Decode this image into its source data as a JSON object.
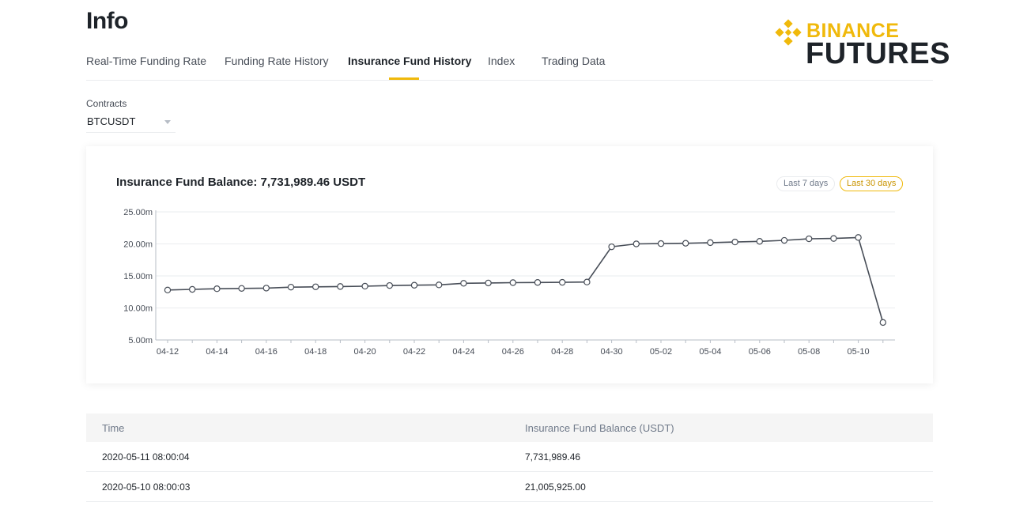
{
  "page": {
    "title": "Info"
  },
  "brand": {
    "line1": "BINANCE",
    "line2": "FUTURES",
    "accent": "#f0b90b"
  },
  "tabs": [
    {
      "label": "Real-Time Funding Rate"
    },
    {
      "label": "Funding Rate History"
    },
    {
      "label": "Insurance Fund History",
      "active": true
    },
    {
      "label": "Index"
    },
    {
      "label": "Trading Data"
    }
  ],
  "contracts": {
    "label": "Contracts",
    "value": "BTCUSDT"
  },
  "card": {
    "title": "Insurance Fund Balance: 7,731,989.46 USDT",
    "range_7": "Last 7 days",
    "range_30": "Last 30 days",
    "selected_range": "Last 30 days"
  },
  "chart_data": {
    "type": "line",
    "title": "Insurance Fund Balance: 7,731,989.46 USDT",
    "xlabel": "",
    "ylabel": "",
    "x": [
      "04-12",
      "04-13",
      "04-14",
      "04-15",
      "04-16",
      "04-17",
      "04-18",
      "04-19",
      "04-20",
      "04-21",
      "04-22",
      "04-23",
      "04-24",
      "04-25",
      "04-26",
      "04-27",
      "04-28",
      "04-29",
      "04-30",
      "05-01",
      "05-02",
      "05-03",
      "05-04",
      "05-05",
      "05-06",
      "05-07",
      "05-08",
      "05-09",
      "05-10",
      "05-11"
    ],
    "x_tick_labels": [
      "04-12",
      "04-14",
      "04-16",
      "04-18",
      "04-20",
      "04-22",
      "04-24",
      "04-26",
      "04-28",
      "04-30",
      "05-02",
      "05-04",
      "05-06",
      "05-08",
      "05-10"
    ],
    "values_m": [
      12.8,
      12.9,
      13.0,
      13.05,
      13.1,
      13.25,
      13.3,
      13.35,
      13.4,
      13.5,
      13.55,
      13.6,
      13.85,
      13.9,
      13.95,
      13.98,
      14.0,
      14.05,
      19.55,
      20.0,
      20.05,
      20.1,
      20.2,
      20.3,
      20.4,
      20.55,
      20.8,
      20.85,
      21.005925,
      7.73198946
    ],
    "y_ticks": [
      "25.00m",
      "20.00m",
      "15.00m",
      "10.00m",
      "5.00m"
    ],
    "ylim": [
      5,
      25
    ],
    "grid": true,
    "line_color": "#474d57"
  },
  "table": {
    "headers": [
      "Time",
      "Insurance Fund Balance (USDT)"
    ],
    "rows": [
      [
        "2020-05-11 08:00:04",
        "7,731,989.46"
      ],
      [
        "2020-05-10 08:00:03",
        "21,005,925.00"
      ]
    ]
  }
}
